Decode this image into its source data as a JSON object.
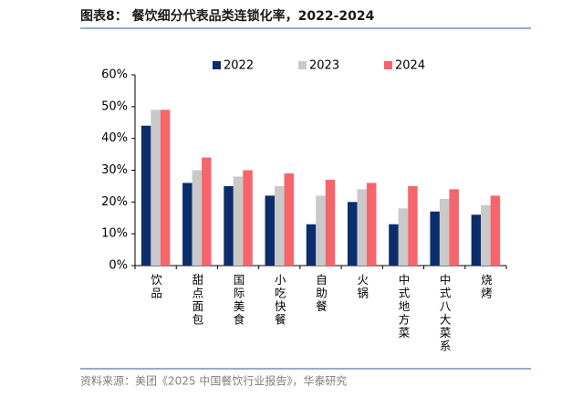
{
  "chart_data": {
    "type": "bar",
    "title": "图表8： 餐饮细分代表品类连锁化率，2022-2024",
    "source": "资料来源：美团《2025 中国餐饮行业报告》，华泰研究",
    "categories": [
      "饮品",
      "甜点面包",
      "国际美食",
      "小吃快餐",
      "自助餐",
      "火锅",
      "中式地方菜",
      "中式八大菜系",
      "烧烤"
    ],
    "series": [
      {
        "name": "2022",
        "color": "#0c2d6b",
        "values": [
          44,
          26,
          25,
          22,
          13,
          20,
          13,
          17,
          16
        ]
      },
      {
        "name": "2023",
        "color": "#c9c9c9",
        "values": [
          49,
          30,
          28,
          25,
          22,
          24,
          18,
          21,
          19
        ]
      },
      {
        "name": "2024",
        "color": "#f6656b",
        "values": [
          49,
          34,
          30,
          29,
          27,
          26,
          25,
          24,
          22
        ]
      }
    ],
    "ylim": [
      0,
      60
    ],
    "yticks": [
      {
        "value": 0,
        "label": "0%"
      },
      {
        "value": 10,
        "label": "10%"
      },
      {
        "value": 20,
        "label": "20%"
      },
      {
        "value": 30,
        "label": "30%"
      },
      {
        "value": 40,
        "label": "40%"
      },
      {
        "value": 50,
        "label": "50%"
      },
      {
        "value": 60,
        "label": "60%"
      }
    ],
    "grid": false
  }
}
